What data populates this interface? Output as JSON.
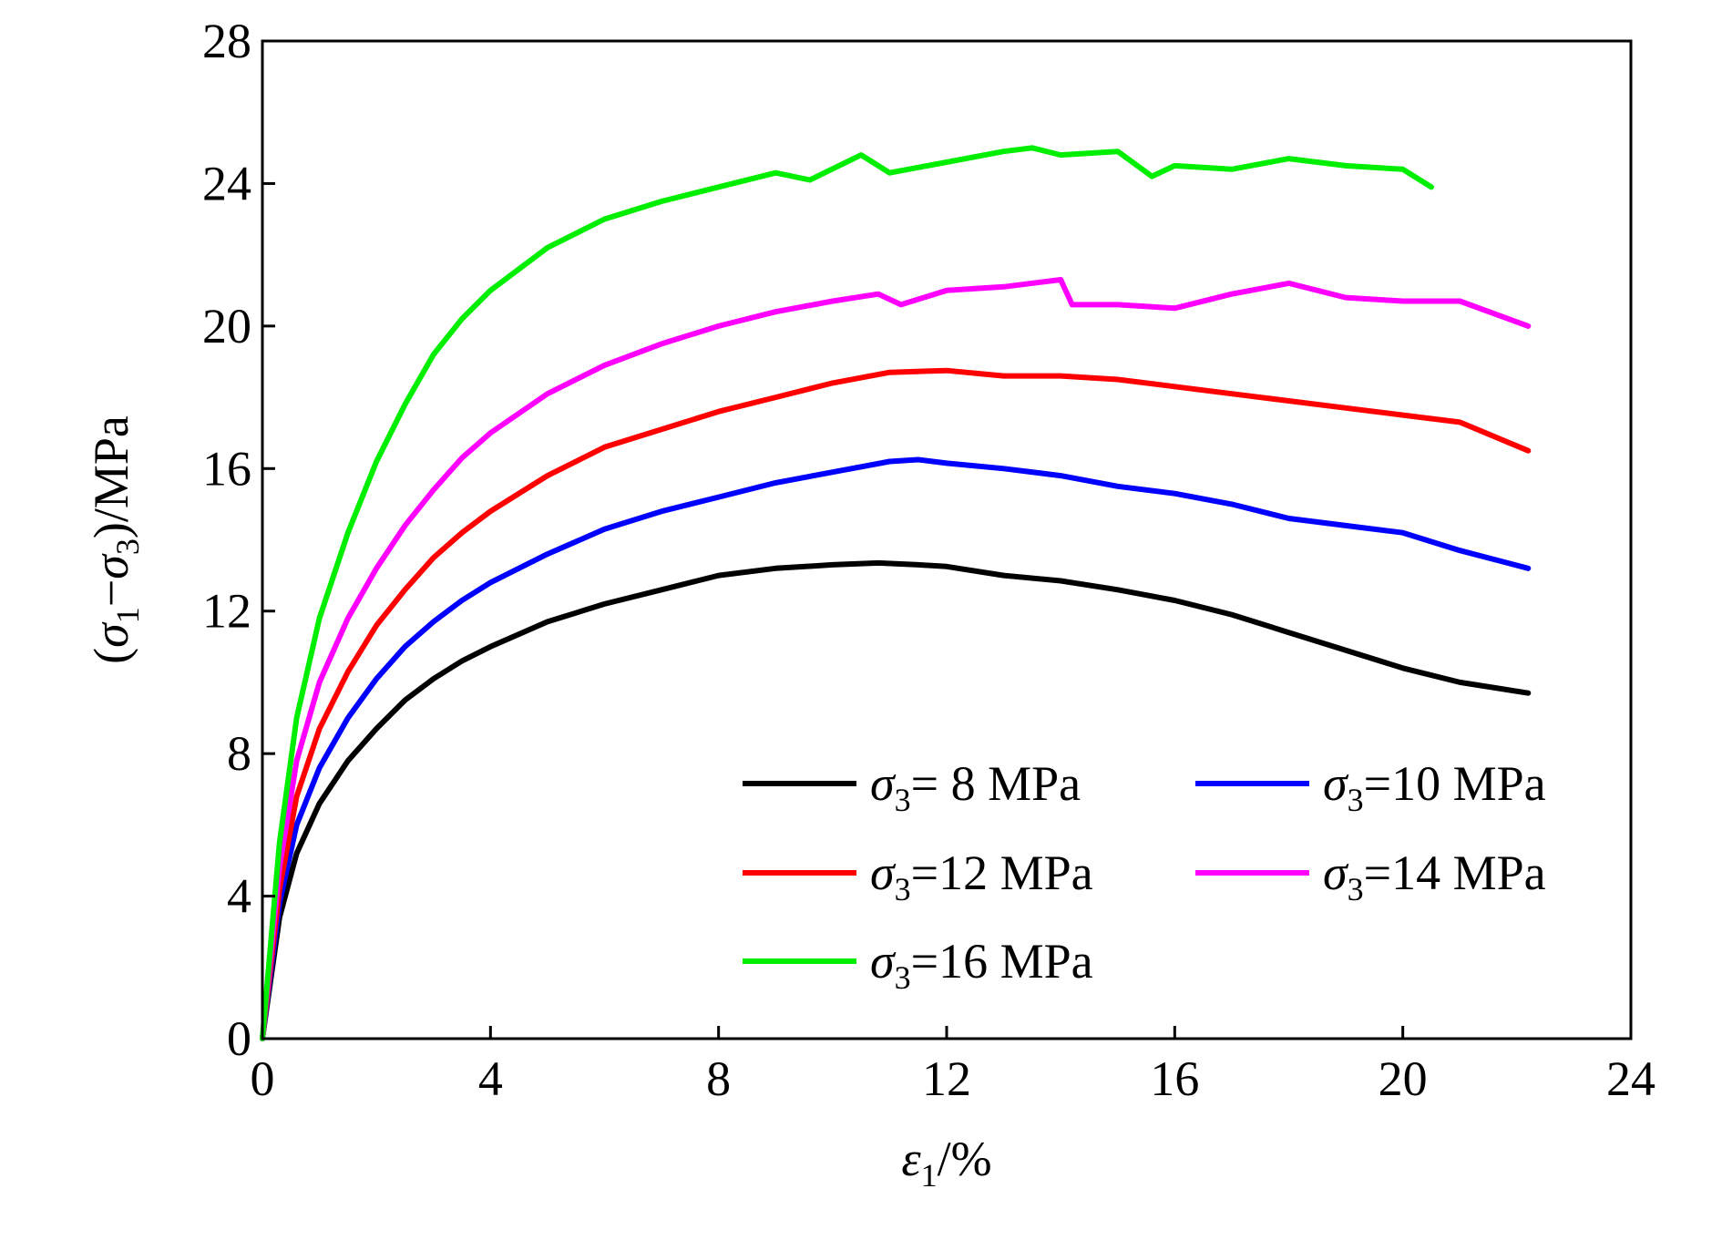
{
  "chart_data": {
    "type": "line",
    "xlabel": {
      "sym": "ε",
      "sub": "1",
      "rest": "/%"
    },
    "ylabel": {
      "open": "(",
      "sym1": "σ",
      "sub1": "1",
      "minus": "−",
      "sym2": "σ",
      "sub2": "3",
      "rest": ")/MPa"
    },
    "xlim": [
      0,
      24
    ],
    "ylim": [
      0,
      28
    ],
    "xticks": [
      "0",
      "4",
      "8",
      "12",
      "16",
      "20",
      "24"
    ],
    "yticks": [
      "0",
      "4",
      "8",
      "12",
      "16",
      "20",
      "24",
      "28"
    ],
    "grid": false,
    "legend_position": "lower-right",
    "series": [
      {
        "name": "σ3= 8 MPa",
        "legend": {
          "sym": "σ",
          "sub": "3",
          "rest": "=  8 MPa"
        },
        "color": "#000000",
        "x": [
          0,
          0.3,
          0.6,
          1.0,
          1.5,
          2,
          2.5,
          3,
          3.5,
          4,
          5,
          6,
          7,
          8,
          9,
          10,
          10.8,
          11.5,
          12,
          13,
          14,
          15,
          16,
          17,
          18,
          19,
          20,
          21,
          22.2
        ],
        "y": [
          0,
          3.4,
          5.2,
          6.6,
          7.8,
          8.7,
          9.5,
          10.1,
          10.6,
          11.0,
          11.7,
          12.2,
          12.6,
          13.0,
          13.2,
          13.3,
          13.35,
          13.3,
          13.25,
          13.0,
          12.85,
          12.6,
          12.3,
          11.9,
          11.4,
          10.9,
          10.4,
          10.0,
          9.7
        ]
      },
      {
        "name": "σ3=10 MPa",
        "legend": {
          "sym": "σ",
          "sub": "3",
          "rest": "=10 MPa"
        },
        "color": "#0000ff",
        "x": [
          0,
          0.3,
          0.6,
          1.0,
          1.5,
          2,
          2.5,
          3,
          3.5,
          4,
          5,
          6,
          7,
          8,
          9,
          10,
          11,
          11.5,
          12,
          13,
          14,
          15,
          16,
          17,
          18,
          19,
          20,
          21,
          22.2
        ],
        "y": [
          0,
          3.8,
          6.0,
          7.6,
          9.0,
          10.1,
          11.0,
          11.7,
          12.3,
          12.8,
          13.6,
          14.3,
          14.8,
          15.2,
          15.6,
          15.9,
          16.2,
          16.25,
          16.15,
          16.0,
          15.8,
          15.5,
          15.3,
          15.0,
          14.6,
          14.4,
          14.2,
          13.7,
          13.2
        ]
      },
      {
        "name": "σ3=12 MPa",
        "legend": {
          "sym": "σ",
          "sub": "3",
          "rest": "=12 MPa"
        },
        "color": "#ff0000",
        "x": [
          0,
          0.3,
          0.6,
          1.0,
          1.5,
          2,
          2.5,
          3,
          3.5,
          4,
          5,
          6,
          7,
          8,
          9,
          10,
          11,
          12,
          13,
          14,
          15,
          16,
          17,
          18,
          19,
          20,
          21,
          22.2
        ],
        "y": [
          0,
          4.2,
          6.8,
          8.7,
          10.3,
          11.6,
          12.6,
          13.5,
          14.2,
          14.8,
          15.8,
          16.6,
          17.1,
          17.6,
          18.0,
          18.4,
          18.7,
          18.75,
          18.6,
          18.6,
          18.5,
          18.3,
          18.1,
          17.9,
          17.7,
          17.5,
          17.3,
          16.5
        ]
      },
      {
        "name": "σ3=14 MPa",
        "legend": {
          "sym": "σ",
          "sub": "3",
          "rest": "=14 MPa"
        },
        "color": "#ff00ff",
        "x": [
          0,
          0.3,
          0.6,
          1.0,
          1.5,
          2,
          2.5,
          3,
          3.5,
          4,
          5,
          6,
          7,
          8,
          9,
          10,
          10.8,
          11.2,
          12,
          13,
          14,
          14.2,
          15,
          16,
          17,
          18,
          19,
          20,
          21,
          22.2
        ],
        "y": [
          0,
          4.8,
          7.8,
          10.0,
          11.8,
          13.2,
          14.4,
          15.4,
          16.3,
          17.0,
          18.1,
          18.9,
          19.5,
          20.0,
          20.4,
          20.7,
          20.9,
          20.6,
          21.0,
          21.1,
          21.3,
          20.6,
          20.6,
          20.5,
          20.9,
          21.2,
          20.8,
          20.7,
          20.7,
          20.0
        ]
      },
      {
        "name": "σ3=16 MPa",
        "legend": {
          "sym": "σ",
          "sub": "3",
          "rest": "=16 MPa"
        },
        "color": "#00ee00",
        "x": [
          0,
          0.3,
          0.6,
          1.0,
          1.5,
          2,
          2.5,
          3,
          3.5,
          4,
          5,
          6,
          7,
          8,
          9,
          9.6,
          10.5,
          11,
          12,
          13,
          13.5,
          14,
          15,
          15.6,
          16,
          17,
          18,
          19,
          20,
          20.5
        ],
        "y": [
          0,
          5.5,
          9.0,
          11.8,
          14.2,
          16.2,
          17.8,
          19.2,
          20.2,
          21.0,
          22.2,
          23.0,
          23.5,
          23.9,
          24.3,
          24.1,
          24.8,
          24.3,
          24.6,
          24.9,
          25.0,
          24.8,
          24.9,
          24.2,
          24.5,
          24.4,
          24.7,
          24.5,
          24.4,
          23.9
        ]
      }
    ]
  }
}
